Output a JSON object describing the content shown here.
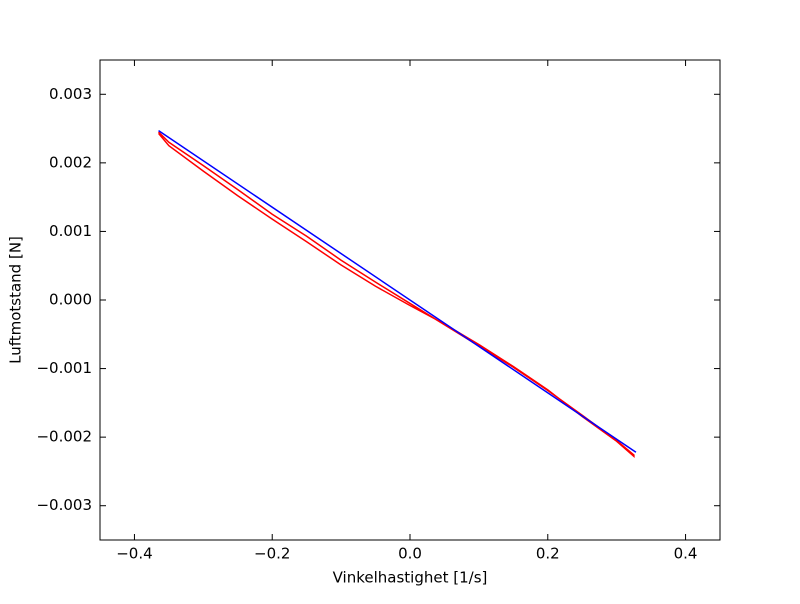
{
  "chart_data": {
    "type": "line",
    "xlabel": "Vinkelhastighet [1/s]",
    "ylabel": "Luftmotstand [N]",
    "xlim": [
      -0.45,
      0.45
    ],
    "ylim": [
      -0.0035,
      0.0035
    ],
    "xticks": [
      {
        "value": -0.4,
        "label": "−0.4"
      },
      {
        "value": -0.2,
        "label": "−0.2"
      },
      {
        "value": 0,
        "label": "0.0"
      },
      0.2,
      0.4
    ],
    "yticks": [
      {
        "value": -0.003,
        "label": "−0.003"
      },
      {
        "value": -0.002,
        "label": "−0.002"
      },
      {
        "value": -0.001,
        "label": "−0.001"
      },
      {
        "value": 0,
        "label": "0.000"
      },
      0.001,
      0.002,
      0.003
    ],
    "grid": false,
    "series": [
      {
        "color": "#ff0000",
        "x": [
          -0.365,
          -0.35,
          -0.3,
          -0.25,
          -0.2,
          -0.15,
          -0.1,
          -0.05,
          0,
          0.05,
          0.1,
          0.15,
          0.2,
          0.25,
          0.3,
          0.325,
          0.325,
          0.3,
          0.25,
          0.2,
          0.15,
          0.1,
          0.05,
          0,
          -0.05,
          -0.1,
          -0.15,
          -0.2,
          -0.25,
          -0.3,
          -0.35,
          -0.365
        ],
        "values": [
          0.00243,
          0.00225,
          0.00188,
          0.00152,
          0.00118,
          0.00085,
          0.00051,
          0.0002,
          -8e-05,
          -0.00035,
          -0.00065,
          -0.00097,
          -0.00131,
          -0.0017,
          -0.00206,
          -0.00228,
          -0.00226,
          -0.00205,
          -0.00168,
          -0.00132,
          -0.00098,
          -0.00067,
          -0.00036,
          -5e-05,
          0.00026,
          0.00058,
          0.00093,
          0.00125,
          0.00161,
          0.00196,
          0.0023,
          0.00245
        ]
      },
      {
        "color": "#0000ff",
        "x": [
          -0.365,
          0.328
        ],
        "values": [
          0.00247,
          -0.00222
        ]
      }
    ]
  }
}
